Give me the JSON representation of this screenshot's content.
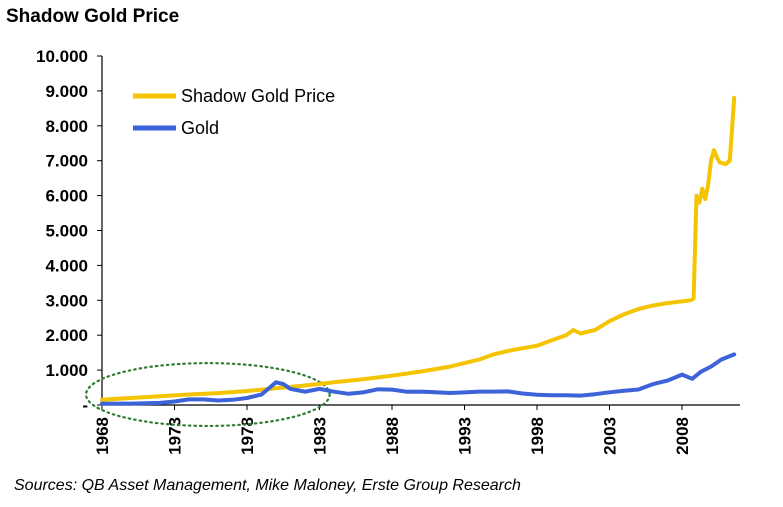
{
  "chart_data": {
    "type": "line",
    "title": "Shadow Gold Price",
    "source": "Sources: QB Asset Management, Mike Maloney, Erste Group Research",
    "xlabel": "",
    "ylabel": "",
    "xlim": [
      1968,
      2012
    ],
    "ylim": [
      0,
      10000
    ],
    "x_ticks": [
      1968,
      1973,
      1978,
      1983,
      1988,
      1993,
      1998,
      2003,
      2008
    ],
    "x_tick_labels": [
      "1968",
      "1973",
      "1978",
      "1983",
      "1988",
      "1993",
      "1998",
      "2003",
      "2008"
    ],
    "y_ticks": [
      0,
      1000,
      2000,
      3000,
      4000,
      5000,
      6000,
      7000,
      8000,
      9000,
      10000
    ],
    "y_tick_labels": [
      "-",
      "1.000",
      "2.000",
      "3.000",
      "4.000",
      "5.000",
      "6.000",
      "7.000",
      "8.000",
      "9.000",
      "10.000"
    ],
    "grid": false,
    "legend_position": "top-left",
    "annotation": "dotted green ellipse around 1968-1983",
    "series": [
      {
        "name": "Shadow Gold Price",
        "color": "#F5C400",
        "points": [
          [
            1968,
            150
          ],
          [
            1970,
            200
          ],
          [
            1972,
            250
          ],
          [
            1974,
            300
          ],
          [
            1976,
            340
          ],
          [
            1978,
            400
          ],
          [
            1980,
            480
          ],
          [
            1982,
            560
          ],
          [
            1984,
            650
          ],
          [
            1986,
            740
          ],
          [
            1988,
            840
          ],
          [
            1990,
            960
          ],
          [
            1992,
            1100
          ],
          [
            1994,
            1300
          ],
          [
            1995,
            1450
          ],
          [
            1996,
            1550
          ],
          [
            1998,
            1700
          ],
          [
            1999,
            1850
          ],
          [
            2000,
            2000
          ],
          [
            2000.5,
            2150
          ],
          [
            2001,
            2050
          ],
          [
            2002,
            2150
          ],
          [
            2003,
            2400
          ],
          [
            2004,
            2600
          ],
          [
            2005,
            2750
          ],
          [
            2006,
            2850
          ],
          [
            2007,
            2920
          ],
          [
            2008.6,
            3000
          ],
          [
            2008.8,
            3050
          ],
          [
            2009.0,
            6000
          ],
          [
            2009.2,
            5800
          ],
          [
            2009.4,
            6200
          ],
          [
            2009.6,
            5900
          ],
          [
            2009.8,
            6300
          ],
          [
            2010.0,
            7000
          ],
          [
            2010.2,
            7300
          ],
          [
            2010.4,
            7100
          ],
          [
            2010.6,
            6950
          ],
          [
            2011.0,
            6900
          ],
          [
            2011.3,
            7000
          ],
          [
            2011.6,
            8800
          ]
        ]
      },
      {
        "name": "Gold",
        "color": "#3D63D8",
        "points": [
          [
            1968,
            40
          ],
          [
            1970,
            40
          ],
          [
            1972,
            60
          ],
          [
            1973,
            100
          ],
          [
            1974,
            160
          ],
          [
            1975,
            160
          ],
          [
            1976,
            130
          ],
          [
            1977,
            150
          ],
          [
            1978,
            200
          ],
          [
            1979,
            300
          ],
          [
            1980,
            650
          ],
          [
            1980.5,
            600
          ],
          [
            1981,
            460
          ],
          [
            1982,
            380
          ],
          [
            1983,
            460
          ],
          [
            1984,
            380
          ],
          [
            1985,
            320
          ],
          [
            1986,
            360
          ],
          [
            1987,
            450
          ],
          [
            1988,
            440
          ],
          [
            1989,
            380
          ],
          [
            1990,
            385
          ],
          [
            1991,
            365
          ],
          [
            1992,
            345
          ],
          [
            1993,
            360
          ],
          [
            1994,
            385
          ],
          [
            1995,
            385
          ],
          [
            1996,
            390
          ],
          [
            1997,
            330
          ],
          [
            1998,
            295
          ],
          [
            1999,
            280
          ],
          [
            2000,
            280
          ],
          [
            2001,
            270
          ],
          [
            2002,
            310
          ],
          [
            2003,
            365
          ],
          [
            2004,
            410
          ],
          [
            2005,
            445
          ],
          [
            2006,
            600
          ],
          [
            2007,
            700
          ],
          [
            2008,
            870
          ],
          [
            2008.7,
            750
          ],
          [
            2009.3,
            950
          ],
          [
            2010,
            1100
          ],
          [
            2010.7,
            1300
          ],
          [
            2011.3,
            1400
          ],
          [
            2011.6,
            1450
          ]
        ]
      }
    ]
  }
}
